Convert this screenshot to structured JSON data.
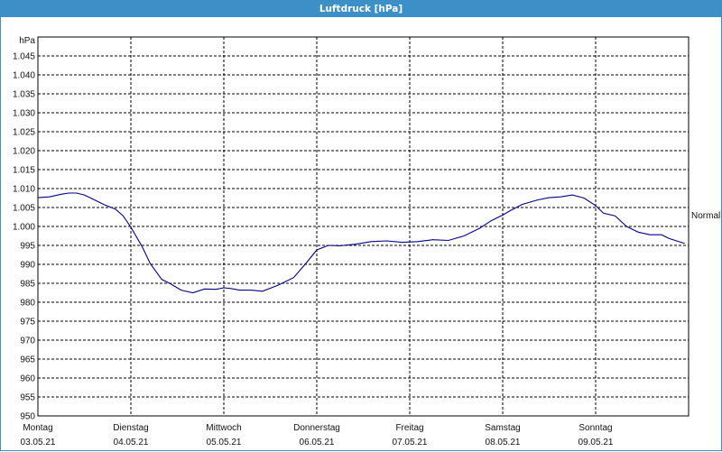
{
  "window": {
    "title": "Luftdruck [hPa]"
  },
  "chart_data": {
    "type": "line",
    "title": "Luftdruck [hPa]",
    "ylabel": "hPa",
    "ylim": [
      950,
      1050
    ],
    "yticks": [
      "1.045",
      "1.040",
      "1.035",
      "1.030",
      "1.025",
      "1.020",
      "1.015",
      "1.010",
      "1.005",
      "1.000",
      "995",
      "990",
      "985",
      "980",
      "975",
      "970",
      "965",
      "960",
      "955",
      "950"
    ],
    "ytick_values": [
      1045,
      1040,
      1035,
      1030,
      1025,
      1020,
      1015,
      1010,
      1005,
      1000,
      995,
      990,
      985,
      980,
      975,
      970,
      965,
      960,
      955,
      950
    ],
    "xlim_days": [
      0,
      7
    ],
    "days": [
      {
        "day": "Montag",
        "date": "03.05.21"
      },
      {
        "day": "Dienstag",
        "date": "04.05.21"
      },
      {
        "day": "Mittwoch",
        "date": "05.05.21"
      },
      {
        "day": "Donnerstag",
        "date": "06.05.21"
      },
      {
        "day": "Freitag",
        "date": "07.05.21"
      },
      {
        "day": "Samstag",
        "date": "08.05.21"
      },
      {
        "day": "Sonntag",
        "date": "09.05.21"
      }
    ],
    "grid": true,
    "reference_label": "Normal",
    "reference_value": 1003,
    "series": [
      {
        "color": "#00008b",
        "x": [
          "03.05.21 00:00",
          "03.05.21 03:00",
          "03.05.21 06:00",
          "03.05.21 08:00",
          "03.05.21 10:00",
          "03.05.21 12:00",
          "03.05.21 14:00",
          "03.05.21 17:00",
          "03.05.21 20:00",
          "03.05.21 22:00",
          "04.05.21 00:00",
          "04.05.21 03:00",
          "04.05.21 05:00",
          "04.05.21 08:00",
          "04.05.21 10:00",
          "04.05.21 13:00",
          "04.05.21 16:00",
          "04.05.21 19:00",
          "04.05.21 22:00",
          "05.05.21 00:00",
          "05.05.21 02:00",
          "05.05.21 04:00",
          "05.05.21 07:00",
          "05.05.21 10:00",
          "05.05.21 14:00",
          "05.05.21 18:00",
          "05.05.21 21:00",
          "06.05.21 00:00",
          "06.05.21 03:00",
          "06.05.21 06:00",
          "06.05.21 10:00",
          "06.05.21 14:00",
          "06.05.21 18:00",
          "06.05.21 22:00",
          "07.05.21 02:00",
          "07.05.21 06:00",
          "07.05.21 10:00",
          "07.05.21 14:00",
          "07.05.21 18:00",
          "07.05.21 21:00",
          "08.05.21 00:00",
          "08.05.21 02:00",
          "08.05.21 05:00",
          "08.05.21 09:00",
          "08.05.21 12:00",
          "08.05.21 15:00",
          "08.05.21 18:00",
          "08.05.21 21:00",
          "09.05.21 00:00",
          "09.05.21 02:00",
          "09.05.21 05:00",
          "09.05.21 08:00",
          "09.05.21 11:00",
          "09.05.21 14:00",
          "09.05.21 17:00",
          "09.05.21 19:00",
          "09.05.21 23:00"
        ],
        "y": [
          1007.6,
          1007.8,
          1008.5,
          1008.8,
          1008.8,
          1008.3,
          1007.3,
          1005.8,
          1004.6,
          1002.8,
          999.8,
          994.5,
          990.2,
          986.0,
          985.0,
          983.2,
          982.5,
          983.5,
          983.4,
          983.8,
          983.6,
          983.2,
          983.2,
          982.9,
          984.5,
          986.5,
          990.0,
          993.8,
          995.0,
          994.9,
          995.3,
          996.0,
          996.2,
          995.8,
          996.0,
          996.5,
          996.3,
          997.5,
          999.5,
          1001.5,
          1003.0,
          1004.2,
          1005.8,
          1007.0,
          1007.6,
          1007.8,
          1008.3,
          1007.5,
          1005.5,
          1003.5,
          1002.8,
          1000.0,
          998.5,
          997.8,
          997.8,
          996.8,
          995.5
        ]
      }
    ]
  }
}
